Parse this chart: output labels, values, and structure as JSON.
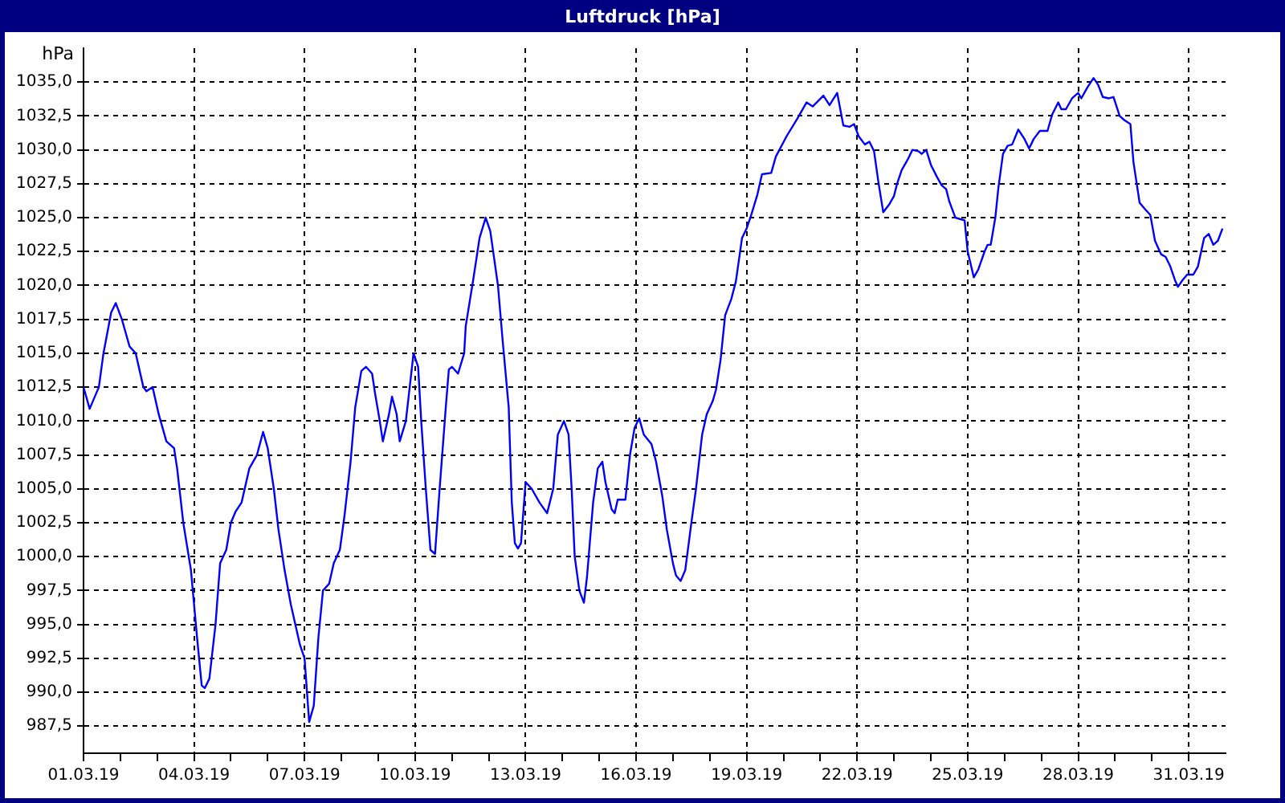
{
  "chart_data": {
    "type": "line",
    "title": "Luftdruck [hPa]",
    "ylabel": "hPa",
    "marker": "none",
    "line_style": "solid",
    "grid": true,
    "legend": false,
    "xlim": [
      "--03-01T00:00",
      "--04-01T00:00"
    ],
    "ylim": [
      985.5,
      1037.5
    ],
    "yticks": [
      {
        "value": 987.5,
        "label": "987,5"
      },
      {
        "value": 990,
        "label": "990,0"
      },
      {
        "value": 992.5,
        "label": "992,5"
      },
      {
        "value": 995,
        "label": "995,0"
      },
      {
        "value": 997.5,
        "label": "997,5"
      },
      {
        "value": 1000,
        "label": "1000,0"
      },
      {
        "value": 1002.5,
        "label": "1002,5"
      },
      {
        "value": 1005,
        "label": "1005,0"
      },
      {
        "value": 1007.5,
        "label": "1007,5"
      },
      {
        "value": 1010,
        "label": "1010,0"
      },
      {
        "value": 1012.5,
        "label": "1012,5"
      },
      {
        "value": 1015,
        "label": "1015,0"
      },
      {
        "value": 1017.5,
        "label": "1017,5"
      },
      {
        "value": 1020,
        "label": "1020,0"
      },
      {
        "value": 1022.5,
        "label": "1022,5"
      },
      {
        "value": 1025,
        "label": "1025,0"
      },
      {
        "value": 1027.5,
        "label": "1027,5"
      },
      {
        "value": 1030,
        "label": "1030,0"
      },
      {
        "value": 1032.5,
        "label": "1032,5"
      },
      {
        "value": 1035,
        "label": "1035,0"
      }
    ],
    "xticks": [
      {
        "value": "--03-01",
        "label": "01.03.19"
      },
      {
        "value": "--03-02",
        "label": null
      },
      {
        "value": "--03-03",
        "label": null
      },
      {
        "value": "--03-04",
        "label": "04.03.19"
      },
      {
        "value": "--03-05",
        "label": null
      },
      {
        "value": "--03-06",
        "label": null
      },
      {
        "value": "--03-07",
        "label": "07.03.19"
      },
      {
        "value": "--03-08",
        "label": null
      },
      {
        "value": "--03-09",
        "label": null
      },
      {
        "value": "--03-10",
        "label": "10.03.19"
      },
      {
        "value": "--03-11",
        "label": null
      },
      {
        "value": "--03-12",
        "label": null
      },
      {
        "value": "--03-13",
        "label": "13.03.19"
      },
      {
        "value": "--03-14",
        "label": null
      },
      {
        "value": "--03-15",
        "label": null
      },
      {
        "value": "--03-16",
        "label": "16.03.19"
      },
      {
        "value": "--03-17",
        "label": null
      },
      {
        "value": "--03-18",
        "label": null
      },
      {
        "value": "--03-19",
        "label": "19.03.19"
      },
      {
        "value": "--03-20",
        "label": null
      },
      {
        "value": "--03-21",
        "label": null
      },
      {
        "value": "--03-22",
        "label": "22.03.19"
      },
      {
        "value": "--03-23",
        "label": null
      },
      {
        "value": "--03-24",
        "label": null
      },
      {
        "value": "--03-25",
        "label": "25.03.19"
      },
      {
        "value": "--03-26",
        "label": null
      },
      {
        "value": "--03-27",
        "label": null
      },
      {
        "value": "--03-28",
        "label": "28.03.19"
      },
      {
        "value": "--03-29",
        "label": null
      },
      {
        "value": "--03-30",
        "label": null
      },
      {
        "value": "--03-31",
        "label": "31.03.19"
      }
    ],
    "series": [
      {
        "color": "#0000ff",
        "x": [
          "--03-01T00:00",
          "--03-01T04:00",
          "--03-01T10:00",
          "--03-01T13:00",
          "--03-01T18:00",
          "--03-01T21:00",
          "--03-02T01:00",
          "--03-02T06:00",
          "--03-02T10:00",
          "--03-02T15:00",
          "--03-02T17:00",
          "--03-02T21:00",
          "--03-03T01:00",
          "--03-03T06:00",
          "--03-03T11:00",
          "--03-03T13:00",
          "--03-03T17:00",
          "--03-03T22:00",
          "--03-04T02:00",
          "--03-04T05:00",
          "--03-04T07:00",
          "--03-04T10:00",
          "--03-04T14:00",
          "--03-04T17:00",
          "--03-04T21:00",
          "--03-05T00:00",
          "--03-05T03:00",
          "--03-05T07:00",
          "--03-05T12:00",
          "--03-05T17:00",
          "--03-05T21:00",
          "--03-06T00:00",
          "--03-06T04:00",
          "--03-06T07:00",
          "--03-06T11:00",
          "--03-06T15:00",
          "--03-06T17:00",
          "--03-06T21:00",
          "--03-07T00:00",
          "--03-07T03:00",
          "--03-07T06:00",
          "--03-07T09:00",
          "--03-07T12:00",
          "--03-07T16:00",
          "--03-07T19:00",
          "--03-07T23:00",
          "--03-08T02:00",
          "--03-08T06:00",
          "--03-08T09:00",
          "--03-08T13:00",
          "--03-08T16:00",
          "--03-08T20:00",
          "--03-08T22:00",
          "--03-09T01:00",
          "--03-09T03:00",
          "--03-09T07:00",
          "--03-09T09:00",
          "--03-09T12:00",
          "--03-09T14:00",
          "--03-09T18:00",
          "--03-09T21:00",
          "--03-09T23:00",
          "--03-10T02:00",
          "--03-10T04:00",
          "--03-10T07:00",
          "--03-10T10:00",
          "--03-10T13:00",
          "--03-10T16:00",
          "--03-10T20:00",
          "--03-10T22:00",
          "--03-11T00:00",
          "--03-11T04:00",
          "--03-11T08:00",
          "--03-11T09:00",
          "--03-11T14:00",
          "--03-11T18:00",
          "--03-11T22:00",
          "--03-12T01:00",
          "--03-12T06:00",
          "--03-12T09:00",
          "--03-12T13:00",
          "--03-12T15:00",
          "--03-12T17:00",
          "--03-12T19:00",
          "--03-12T21:00",
          "--03-13T00:00",
          "--03-13T04:00",
          "--03-13T09:00",
          "--03-13T14:00",
          "--03-13T18:00",
          "--03-13T21:00",
          "--03-14T01:00",
          "--03-14T04:00",
          "--03-14T06:00",
          "--03-14T08:00",
          "--03-14T11:00",
          "--03-14T14:00",
          "--03-14T16:00",
          "--03-14T20:00",
          "--03-14T23:00",
          "--03-15T02:00",
          "--03-15T04:00",
          "--03-15T08:00",
          "--03-15T10:00",
          "--03-15T12:00",
          "--03-15T17:00",
          "--03-15T20:00",
          "--03-15T23:00",
          "--03-16T02:00",
          "--03-16T05:00",
          "--03-16T10:00",
          "--03-16T13:00",
          "--03-16T17:00",
          "--03-16T20:00",
          "--03-17T00:00",
          "--03-17T02:00",
          "--03-17T05:00",
          "--03-17T08:00",
          "--03-17T12:00",
          "--03-17T15:00",
          "--03-17T19:00",
          "--03-17T22:00",
          "--03-18T02:00",
          "--03-18T04:00",
          "--03-18T07:00",
          "--03-18T10:00",
          "--03-18T14:00",
          "--03-18T17:00",
          "--03-18T21:00",
          "--03-19T00:00",
          "--03-19T03:00",
          "--03-19T07:00",
          "--03-19T10:00",
          "--03-19T16:00",
          "--03-19T19:00",
          "--03-20T02:00",
          "--03-20T09:00",
          "--03-20T15:00",
          "--03-20T19:00",
          "--03-21T02:00",
          "--03-21T06:00",
          "--03-21T11:00",
          "--03-21T15:00",
          "--03-21T19:00",
          "--03-21T22:00",
          "--03-22T01:00",
          "--03-22T05:00",
          "--03-22T08:00",
          "--03-22T11:00",
          "--03-22T14:00",
          "--03-22T17:00",
          "--03-22T21:00",
          "--03-23T00:00",
          "--03-23T02:00",
          "--03-23T05:00",
          "--03-23T09:00",
          "--03-23T12:00",
          "--03-23T16:00",
          "--03-23T18:00",
          "--03-23T21:00",
          "--03-24T00:00",
          "--03-24T04:00",
          "--03-24T07:00",
          "--03-24T10:00",
          "--03-24T12:00",
          "--03-24T16:00",
          "--03-24T19:00",
          "--03-24T22:00",
          "--03-25T00:00",
          "--03-25T04:00",
          "--03-25T07:00",
          "--03-25T11:00",
          "--03-25T13:00",
          "--03-25T15:00",
          "--03-25T18:00",
          "--03-25T20:00",
          "--03-25T23:00",
          "--03-26T02:00",
          "--03-26T05:00",
          "--03-26T09:00",
          "--03-26T13:00",
          "--03-26T16:00",
          "--03-26T19:00",
          "--03-26T23:00",
          "--03-27T04:00",
          "--03-27T07:00",
          "--03-27T11:00",
          "--03-27T13:00",
          "--03-27T16:00",
          "--03-27T20:00",
          "--03-28T00:00",
          "--03-28T02:00",
          "--03-28T06:00",
          "--03-28T10:00",
          "--03-28T13:00",
          "--03-28T16:00",
          "--03-28T20:00",
          "--03-28T23:00",
          "--03-29T03:00",
          "--03-29T06:00",
          "--03-29T10:00",
          "--03-29T12:00",
          "--03-29T16:00",
          "--03-29T19:00",
          "--03-29T23:00",
          "--03-30T02:00",
          "--03-30T06:00",
          "--03-30T09:00",
          "--03-30T12:00",
          "--03-30T15:00",
          "--03-30T17:00",
          "--03-30T20:00",
          "--03-30T23:00",
          "--03-31T03:00",
          "--03-31T06:00",
          "--03-31T10:00",
          "--03-31T13:00",
          "--03-31T16:00",
          "--03-31T19:00",
          "--03-31T22:00"
        ],
        "values": [
          1012.5,
          1010.9,
          1012.5,
          1015,
          1018,
          1018.7,
          1017.5,
          1015.5,
          1015,
          1012.5,
          1012.2,
          1012.5,
          1010.5,
          1008.5,
          1008,
          1006.5,
          1002.5,
          999,
          994,
          990.5,
          990.3,
          991,
          995,
          999.5,
          1000.5,
          1002.5,
          1003.3,
          1004,
          1006.5,
          1007.5,
          1009.2,
          1008,
          1005,
          1002,
          999,
          996.5,
          995.5,
          993.5,
          992.5,
          987.8,
          989,
          994,
          997.5,
          998,
          999.5,
          1000.5,
          1003,
          1007,
          1011,
          1013.7,
          1014,
          1013.5,
          1012,
          1010,
          1008.5,
          1010.5,
          1011.8,
          1010.5,
          1008.5,
          1010,
          1013,
          1015,
          1014,
          1010,
          1005,
          1000.5,
          1000.2,
          1005,
          1011,
          1013.8,
          1014,
          1013.5,
          1015,
          1017,
          1020.5,
          1023.5,
          1025,
          1024,
          1020,
          1016,
          1011,
          1004,
          1001,
          1000.6,
          1001,
          1005.5,
          1005,
          1004,
          1003.2,
          1005,
          1009,
          1010,
          1009,
          1005,
          1000,
          997.5,
          996.6,
          998.5,
          1004,
          1006.5,
          1007,
          1005.5,
          1003.5,
          1003.2,
          1004.2,
          1004.2,
          1007.5,
          1009.5,
          1010.2,
          1009,
          1008.3,
          1007,
          1004.5,
          1002,
          999.5,
          998.6,
          998.2,
          999,
          1002.5,
          1005,
          1009,
          1010.5,
          1011.5,
          1012.3,
          1014.5,
          1017.8,
          1019,
          1020.3,
          1023.5,
          1024.2,
          1025.2,
          1026.7,
          1028.2,
          1028.3,
          1029.5,
          1031,
          1032.3,
          1033.5,
          1033.2,
          1034,
          1033.3,
          1034.2,
          1031.8,
          1031.7,
          1031.9,
          1031,
          1030.4,
          1030.6,
          1029.9,
          1027.5,
          1025.4,
          1026,
          1026.6,
          1027.5,
          1028.5,
          1029.3,
          1030,
          1029.9,
          1029.7,
          1030,
          1028.9,
          1028,
          1027.4,
          1027.1,
          1026.2,
          1025,
          1024.9,
          1024.8,
          1022.5,
          1020.6,
          1021.2,
          1022.5,
          1023,
          1023,
          1025,
          1027.2,
          1029.7,
          1030.3,
          1030.4,
          1031.5,
          1030.8,
          1030.1,
          1030.8,
          1031.4,
          1031.4,
          1032.6,
          1033.5,
          1033,
          1033,
          1033.8,
          1034.2,
          1033.8,
          1034.6,
          1035.3,
          1034.8,
          1033.9,
          1033.8,
          1033.9,
          1032.5,
          1032.2,
          1031.9,
          1029.1,
          1026.1,
          1025.7,
          1025.2,
          1023.3,
          1022.3,
          1022.1,
          1021.4,
          1020.4,
          1019.9,
          1020.4,
          1020.8,
          1020.8,
          1021.4,
          1023.5,
          1023.8,
          1023,
          1023.3,
          1024.2
        ]
      }
    ]
  }
}
